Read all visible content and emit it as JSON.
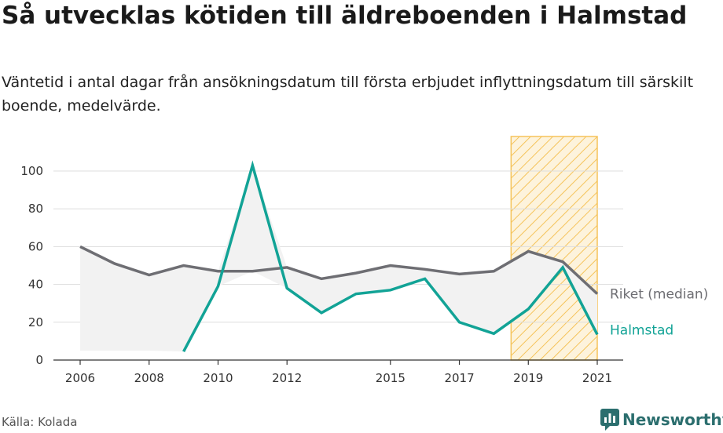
{
  "header": {
    "title": "Så utvecklas kötiden till äldreboenden i Halmstad",
    "subtitle": "Väntetid i antal dagar från ansökningsdatum till första erbjudet inflyttningsdatum till särskilt boende, medelvärde."
  },
  "footer": {
    "source": "Källa: Kolada",
    "brand": "Newsworthy"
  },
  "colors": {
    "riket": "#6e6e73",
    "halmstad": "#12a396",
    "highlight": "#f5c35a",
    "grid": "#dddddd",
    "area": "#f2f2f2"
  },
  "chart_data": {
    "type": "line",
    "title": "Så utvecklas kötiden till äldreboenden i Halmstad",
    "xlabel": "",
    "ylabel": "",
    "ylim": [
      0,
      105
    ],
    "xlim": [
      2006,
      2021
    ],
    "y_ticks": [
      0,
      20,
      40,
      60,
      80,
      100
    ],
    "x_ticks": [
      2006,
      2008,
      2010,
      2012,
      2015,
      2017,
      2019,
      2021
    ],
    "grid": true,
    "highlight_range": [
      2018.5,
      2021
    ],
    "series": [
      {
        "name": "Riket (median)",
        "x": [
          2006,
          2007,
          2008,
          2009,
          2010,
          2011,
          2012,
          2013,
          2014,
          2015,
          2016,
          2017,
          2018,
          2019,
          2020,
          2021
        ],
        "values": [
          60,
          51,
          45,
          50,
          47,
          47,
          49,
          43,
          46,
          50,
          48,
          45.5,
          47,
          57.5,
          52,
          35
        ]
      },
      {
        "name": "Halmstad",
        "x": [
          2009,
          2010,
          2011,
          2012,
          2013,
          2014,
          2015,
          2016,
          2017,
          2018,
          2019,
          2020,
          2021
        ],
        "values": [
          4.5,
          39,
          103,
          38,
          25,
          35,
          37,
          43,
          20,
          14,
          27,
          49,
          13.5
        ]
      }
    ]
  }
}
